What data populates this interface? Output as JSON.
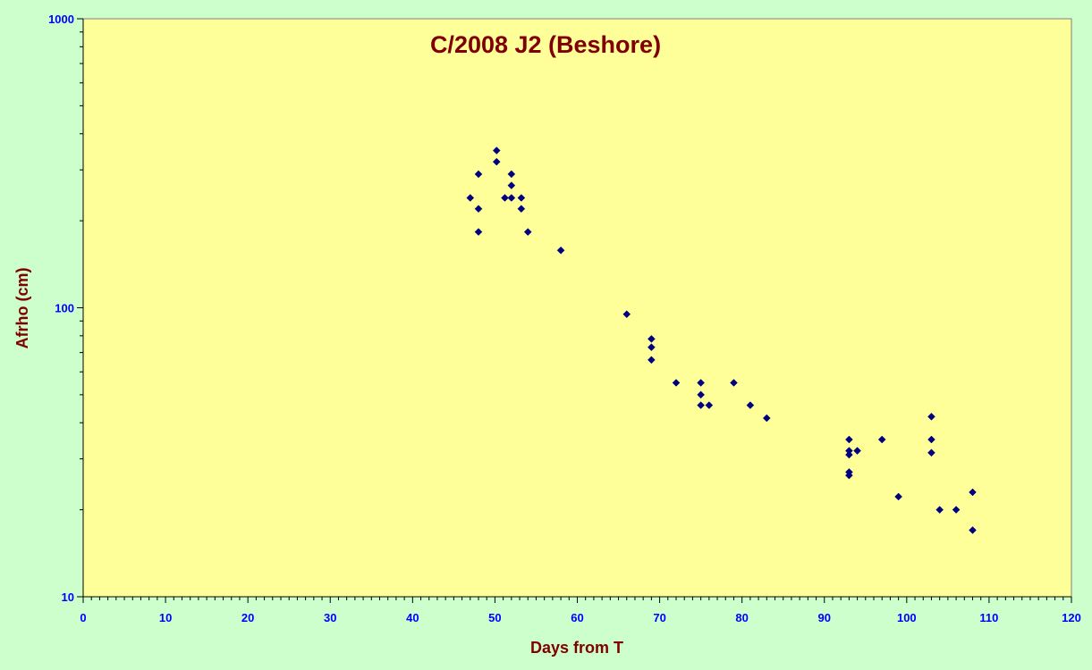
{
  "chart_data": {
    "type": "scatter",
    "title": "C/2008 J2 (Beshore)",
    "xlabel": "Days from T",
    "ylabel": "Afrho (cm)",
    "xlim": [
      0,
      120
    ],
    "ylim": [
      10,
      1000
    ],
    "yscale": "log",
    "x_ticks": [
      "0",
      "10",
      "20",
      "30",
      "40",
      "50",
      "60",
      "70",
      "80",
      "90",
      "100",
      "110",
      "120"
    ],
    "y_ticks": [
      "10",
      "100",
      "1000"
    ],
    "grid": false,
    "legend": "none",
    "colors": {
      "marker": "#000080",
      "plot_bg": "#ffff99",
      "page_bg": "#ccffcc",
      "title": "#800000",
      "tick_labels": "#0000ff"
    },
    "series": [
      {
        "marker": "diamond",
        "points": [
          [
            47,
            240
          ],
          [
            48,
            290
          ],
          [
            48,
            220
          ],
          [
            48,
            183
          ],
          [
            50.2,
            350
          ],
          [
            50.2,
            320
          ],
          [
            51.2,
            240
          ],
          [
            52,
            290
          ],
          [
            52,
            265
          ],
          [
            52,
            240
          ],
          [
            53.2,
            240
          ],
          [
            53.2,
            220
          ],
          [
            54,
            183
          ],
          [
            58,
            158
          ],
          [
            66,
            95
          ],
          [
            69,
            78
          ],
          [
            69,
            73
          ],
          [
            69,
            66
          ],
          [
            72,
            55
          ],
          [
            75,
            55
          ],
          [
            75,
            50
          ],
          [
            75,
            46
          ],
          [
            76,
            46
          ],
          [
            79,
            55
          ],
          [
            81,
            46
          ],
          [
            83,
            41.5
          ],
          [
            93,
            35
          ],
          [
            93,
            32
          ],
          [
            93,
            31
          ],
          [
            93,
            27
          ],
          [
            93,
            26.3
          ],
          [
            94,
            32
          ],
          [
            97,
            35
          ],
          [
            99,
            22.2
          ],
          [
            103,
            42
          ],
          [
            103,
            35
          ],
          [
            103,
            31.5
          ],
          [
            104,
            20
          ],
          [
            106,
            20
          ],
          [
            108,
            23
          ],
          [
            108,
            17
          ]
        ]
      }
    ]
  }
}
